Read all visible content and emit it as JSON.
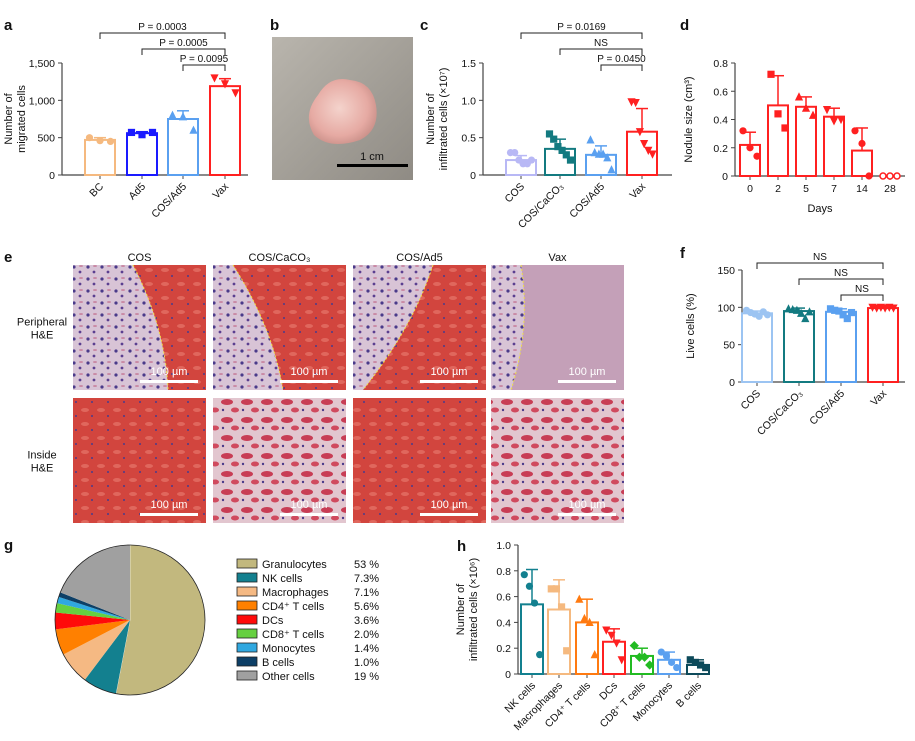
{
  "panel_labels": {
    "a": "a",
    "b": "b",
    "c": "c",
    "d": "d",
    "e": "e",
    "f": "f",
    "g": "g",
    "h": "h"
  },
  "photo_b": {
    "scale_bar_label": "1 cm"
  },
  "micrographs": {
    "columns": [
      "COS",
      "COS/CaCO₃",
      "COS/Ad5",
      "Vax"
    ],
    "rows": [
      {
        "label_line1": "Peripheral",
        "label_line2": "H&E"
      },
      {
        "label_line1": "Inside",
        "label_line2": "H&E"
      }
    ],
    "scale_bar_label": "100 µm"
  },
  "chart_data": [
    {
      "id": "a",
      "type": "bar",
      "ylabel_line1": "Number of",
      "ylabel_line2": "migrated cells",
      "ylim": [
        0,
        1500
      ],
      "yticks": [
        0,
        500,
        1000,
        1500
      ],
      "ytick_labels": [
        "0",
        "500",
        "1,000",
        "1,500"
      ],
      "categories": [
        "BC",
        "Ad5",
        "COS/Ad5",
        "Vax"
      ],
      "values": [
        470,
        560,
        750,
        1190
      ],
      "errors": [
        30,
        20,
        110,
        100
      ],
      "points": [
        [
          500,
          460,
          450
        ],
        [
          570,
          540,
          570
        ],
        [
          800,
          780,
          600
        ],
        [
          1300,
          1220,
          1100
        ]
      ],
      "colors": [
        "#f5b97f",
        "#1a1aff",
        "#5aa0f0",
        "#ff2020"
      ],
      "comparisons": [
        {
          "from": "BC",
          "to": "Vax",
          "label": "P = 0.0003"
        },
        {
          "from": "Ad5",
          "to": "Vax",
          "label": "P = 0.0005"
        },
        {
          "from": "COS/Ad5",
          "to": "Vax",
          "label": "P = 0.0095"
        }
      ]
    },
    {
      "id": "c",
      "type": "bar",
      "ylabel_line1": "Number of",
      "ylabel_line2": "infiltrated cells (×10⁷)",
      "ylim": [
        0,
        1.5
      ],
      "yticks": [
        0,
        0.5,
        1.0,
        1.5
      ],
      "ytick_labels": [
        "0",
        "0.5",
        "1.0",
        "1.5"
      ],
      "categories": [
        "COS",
        "COS/CaCO₃",
        "COS/Ad5",
        "Vax"
      ],
      "values": [
        0.2,
        0.35,
        0.27,
        0.58
      ],
      "errors": [
        0.06,
        0.13,
        0.12,
        0.31
      ],
      "points": [
        [
          0.3,
          0.3,
          0.2,
          0.15,
          0.15,
          0.2
        ],
        [
          0.55,
          0.48,
          0.38,
          0.33,
          0.27,
          0.2
        ],
        [
          0.47,
          0.3,
          0.28,
          0.28,
          0.23,
          0.07
        ],
        [
          0.98,
          0.97,
          0.58,
          0.42,
          0.33,
          0.28
        ]
      ],
      "colors": [
        "#b8b8f5",
        "#137a80",
        "#5aa0f0",
        "#ff2020"
      ],
      "comparisons": [
        {
          "from": "COS",
          "to": "Vax",
          "label": "P = 0.0169"
        },
        {
          "from": "COS/CaCO₃",
          "to": "Vax",
          "label": "NS"
        },
        {
          "from": "COS/Ad5",
          "to": "Vax",
          "label": "P = 0.0450"
        }
      ]
    },
    {
      "id": "d",
      "type": "bar",
      "ylabel": "Nodule size (cm³)",
      "xlabel": "Days",
      "ylim": [
        0,
        0.8
      ],
      "yticks": [
        0,
        0.2,
        0.4,
        0.6,
        0.8
      ],
      "ytick_labels": [
        "0",
        "0.2",
        "0.4",
        "0.6",
        "0.8"
      ],
      "categories": [
        "0",
        "2",
        "5",
        "7",
        "14",
        "28"
      ],
      "values": [
        0.22,
        0.5,
        0.49,
        0.42,
        0.18,
        0
      ],
      "errors": [
        0.09,
        0.21,
        0.07,
        0.06,
        0.16,
        0
      ],
      "points": [
        [
          0.32,
          0.2,
          0.14
        ],
        [
          0.72,
          0.44,
          0.34
        ],
        [
          0.56,
          0.48,
          0.43
        ],
        [
          0.47,
          0.39,
          0.4
        ],
        [
          0.32,
          0.23,
          0
        ],
        [
          0,
          0,
          0
        ]
      ],
      "colors": [
        "#ff2020",
        "#ff2020",
        "#ff2020",
        "#ff2020",
        "#ff2020",
        "#ff2020"
      ],
      "comparisons": []
    },
    {
      "id": "f",
      "type": "bar",
      "ylabel": "Live cells (%)",
      "ylim": [
        0,
        150
      ],
      "yticks": [
        0,
        50,
        100,
        150
      ],
      "ytick_labels": [
        "0",
        "50",
        "100",
        "150"
      ],
      "categories": [
        "COS",
        "COS/CaCO₃",
        "COS/Ad5",
        "Vax"
      ],
      "values": [
        92,
        95,
        94,
        99
      ],
      "errors": [
        3,
        4,
        4,
        1
      ],
      "points": [
        [
          96,
          93,
          91,
          88,
          94,
          90
        ],
        [
          98,
          97,
          96,
          92,
          85,
          94
        ],
        [
          98,
          96,
          95,
          90,
          85,
          93
        ],
        [
          100,
          99,
          100,
          99,
          100,
          99
        ]
      ],
      "colors": [
        "#9cc4f2",
        "#137a80",
        "#5aa0f0",
        "#ff2020"
      ],
      "comparisons": [
        {
          "from": "COS",
          "to": "Vax",
          "label": "NS"
        },
        {
          "from": "COS/CaCO₃",
          "to": "Vax",
          "label": "NS"
        },
        {
          "from": "COS/Ad5",
          "to": "Vax",
          "label": "NS"
        }
      ]
    },
    {
      "id": "g",
      "type": "pie",
      "slices": [
        {
          "name": "Granulocytes",
          "value": 53,
          "label": "53 %",
          "color": "#c2b87e"
        },
        {
          "name": "NK cells",
          "value": 7.3,
          "label": "7.3%",
          "color": "#13808f"
        },
        {
          "name": "Macrophages",
          "value": 7.1,
          "label": "7.1%",
          "color": "#f5b983"
        },
        {
          "name": "CD4⁺ T cells",
          "value": 5.6,
          "label": "5.6%",
          "color": "#ff8000"
        },
        {
          "name": "DCs",
          "value": 3.6,
          "label": "3.6%",
          "color": "#ff0a0a"
        },
        {
          "name": "CD8⁺ T cells",
          "value": 2.0,
          "label": "2.0%",
          "color": "#66d040"
        },
        {
          "name": "Monocytes",
          "value": 1.4,
          "label": "1.4%",
          "color": "#30a8e0"
        },
        {
          "name": "B cells",
          "value": 1.0,
          "label": "1.0%",
          "color": "#0d3f66"
        },
        {
          "name": "Other cells",
          "value": 19,
          "label": "19 %",
          "color": "#a0a0a0"
        }
      ]
    },
    {
      "id": "h",
      "type": "bar",
      "ylabel_line1": "Number of",
      "ylabel_line2": "infiltrated cells (×10⁶)",
      "ylim": [
        0,
        1.0
      ],
      "yticks": [
        0,
        0.2,
        0.4,
        0.6,
        0.8,
        1.0
      ],
      "ytick_labels": [
        "0",
        "0.2",
        "0.4",
        "0.6",
        "0.8",
        "1.0"
      ],
      "categories": [
        "NK cells",
        "Macrophages",
        "CD4⁺ T cells",
        "DCs",
        "CD8⁺ T cells",
        "Monocytes",
        "B cells"
      ],
      "values": [
        0.54,
        0.5,
        0.4,
        0.25,
        0.14,
        0.11,
        0.07
      ],
      "errors": [
        0.27,
        0.23,
        0.18,
        0.1,
        0.06,
        0.06,
        0.04
      ],
      "points": [
        [
          0.77,
          0.68,
          0.55,
          0.15
        ],
        [
          0.66,
          0.66,
          0.52,
          0.18
        ],
        [
          0.58,
          0.43,
          0.4,
          0.15
        ],
        [
          0.34,
          0.3,
          0.24,
          0.11
        ],
        [
          0.22,
          0.13,
          0.13,
          0.07
        ],
        [
          0.17,
          0.14,
          0.09,
          0.05
        ],
        [
          0.11,
          0.09,
          0.07,
          0.05
        ]
      ],
      "colors": [
        "#13808f",
        "#f5b97f",
        "#ff7a10",
        "#ff2020",
        "#22bb22",
        "#5aa0f0",
        "#0d4a5a"
      ],
      "comparisons": []
    }
  ]
}
